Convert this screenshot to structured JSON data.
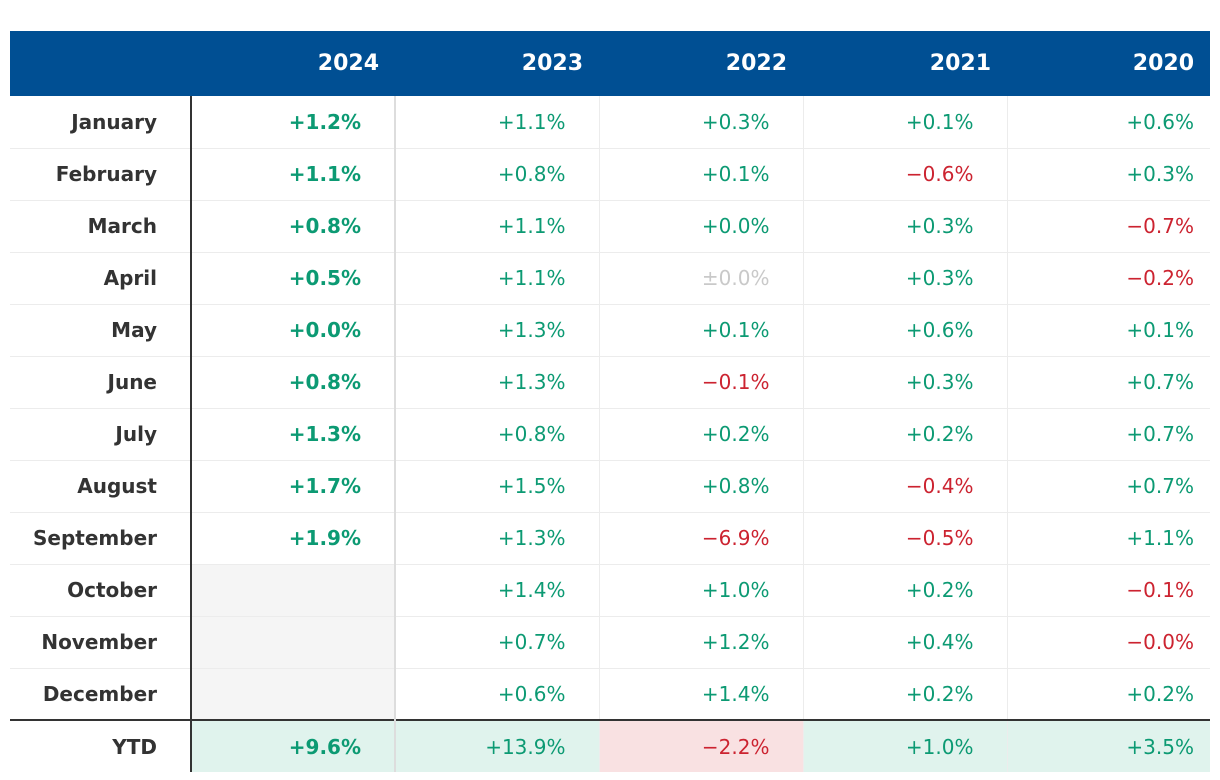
{
  "table": {
    "header": [
      "",
      "2024",
      "2023",
      "2022",
      "2021",
      "2020"
    ],
    "rows": [
      {
        "label": "January",
        "values": [
          "+1.2%",
          "+1.1%",
          "+0.3%",
          "+0.1%",
          "+0.6%"
        ],
        "signs": [
          "pos",
          "pos",
          "pos",
          "pos",
          "pos"
        ]
      },
      {
        "label": "February",
        "values": [
          "+1.1%",
          "+0.8%",
          "+0.1%",
          "−0.6%",
          "+0.3%"
        ],
        "signs": [
          "pos",
          "pos",
          "pos",
          "neg",
          "pos"
        ]
      },
      {
        "label": "March",
        "values": [
          "+0.8%",
          "+1.1%",
          "+0.0%",
          "+0.3%",
          "−0.7%"
        ],
        "signs": [
          "pos",
          "pos",
          "pos",
          "pos",
          "neg"
        ]
      },
      {
        "label": "April",
        "values": [
          "+0.5%",
          "+1.1%",
          "±0.0%",
          "+0.3%",
          "−0.2%"
        ],
        "signs": [
          "pos",
          "pos",
          "zero",
          "pos",
          "neg"
        ]
      },
      {
        "label": "May",
        "values": [
          "+0.0%",
          "+1.3%",
          "+0.1%",
          "+0.6%",
          "+0.1%"
        ],
        "signs": [
          "pos",
          "pos",
          "pos",
          "pos",
          "pos"
        ]
      },
      {
        "label": "June",
        "values": [
          "+0.8%",
          "+1.3%",
          "−0.1%",
          "+0.3%",
          "+0.7%"
        ],
        "signs": [
          "pos",
          "pos",
          "neg",
          "pos",
          "pos"
        ]
      },
      {
        "label": "July",
        "values": [
          "+1.3%",
          "+0.8%",
          "+0.2%",
          "+0.2%",
          "+0.7%"
        ],
        "signs": [
          "pos",
          "pos",
          "pos",
          "pos",
          "pos"
        ]
      },
      {
        "label": "August",
        "values": [
          "+1.7%",
          "+1.5%",
          "+0.8%",
          "−0.4%",
          "+0.7%"
        ],
        "signs": [
          "pos",
          "pos",
          "pos",
          "neg",
          "pos"
        ]
      },
      {
        "label": "September",
        "values": [
          "+1.9%",
          "+1.3%",
          "−6.9%",
          "−0.5%",
          "+1.1%"
        ],
        "signs": [
          "pos",
          "pos",
          "neg",
          "neg",
          "pos"
        ]
      },
      {
        "label": "October",
        "values": [
          "",
          "+1.4%",
          "+1.0%",
          "+0.2%",
          "−0.1%"
        ],
        "signs": [
          "empty",
          "pos",
          "pos",
          "pos",
          "neg"
        ]
      },
      {
        "label": "November",
        "values": [
          "",
          "+0.7%",
          "+1.2%",
          "+0.4%",
          "−0.0%"
        ],
        "signs": [
          "empty",
          "pos",
          "pos",
          "pos",
          "neg"
        ]
      },
      {
        "label": "December",
        "values": [
          "",
          "+0.6%",
          "+1.4%",
          "+0.2%",
          "+0.2%"
        ],
        "signs": [
          "empty",
          "pos",
          "pos",
          "pos",
          "pos"
        ]
      }
    ],
    "ytd": {
      "label": "YTD",
      "values": [
        "+9.6%",
        "+13.9%",
        "−2.2%",
        "+1.0%",
        "+3.5%"
      ],
      "signs": [
        "pos",
        "pos",
        "neg",
        "pos",
        "pos"
      ]
    }
  },
  "colors": {
    "header_bg": "#004f93",
    "positive": "#0c9a73",
    "negative": "#cc2330",
    "neutral": "#c9c9c9"
  }
}
